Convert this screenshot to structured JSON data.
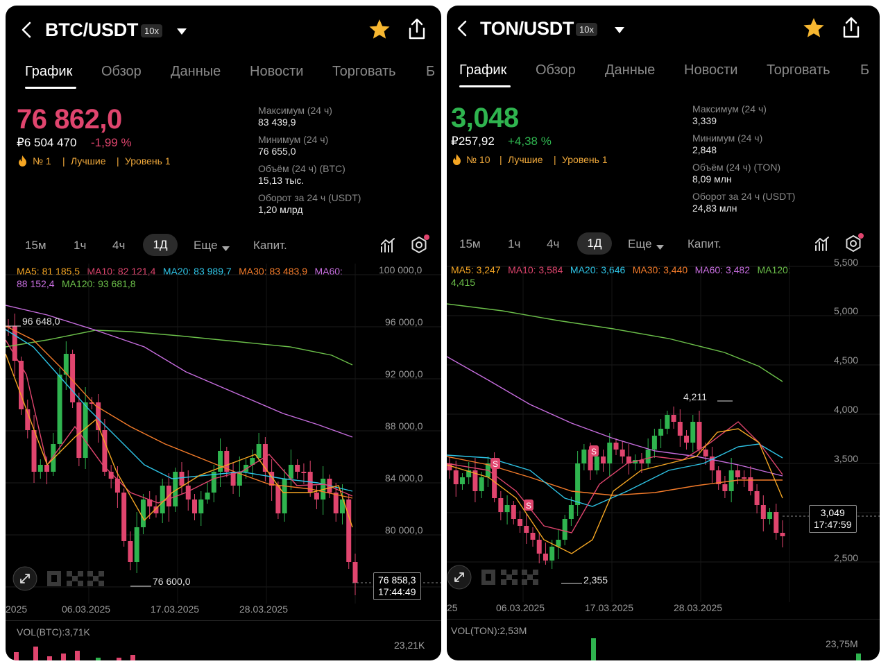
{
  "panels": [
    {
      "pair": "BTC/USDT",
      "leverage": "10x",
      "tabs": [
        "График",
        "Обзор",
        "Данные",
        "Новости",
        "Торговать",
        "Б"
      ],
      "price": "76 862,0",
      "price_color": "#e0456e",
      "fiat_price": "₽6 504 470",
      "change": "-1,99 %",
      "change_color": "#e0456e",
      "rank": "№ 1",
      "best": "Лучшие",
      "level": "Уровень 1",
      "stats": [
        {
          "label": "Максимум (24 ч)",
          "value": "83 439,9"
        },
        {
          "label": "Минимум (24 ч)",
          "value": "76 655,0"
        },
        {
          "label": "Объём (24 ч) (BTC)",
          "value": "15,13 тыс."
        },
        {
          "label": "Оборот за 24 ч (USDT)",
          "value": "1,20 млрд"
        }
      ],
      "timeframes": [
        "15м",
        "1ч",
        "4ч",
        "1Д",
        "Еще",
        "Капит."
      ],
      "ma_line1": [
        {
          "text": "MA5: 81 185,5",
          "color": "#f5a623"
        },
        {
          "text": "MA10: 82 121,4",
          "color": "#e0456e"
        },
        {
          "text": "MA20: 83 989,7",
          "color": "#2ec4e6"
        },
        {
          "text": "MA30: 83 483,9",
          "color": "#f57c2a"
        },
        {
          "text": "MA60:",
          "color": "#c86ee0"
        }
      ],
      "ma_line2": [
        {
          "text": "88 152,4",
          "color": "#c86ee0"
        },
        {
          "text": "MA120: 93 681,8",
          "color": "#6cc04a"
        }
      ],
      "y_axis": [
        "100 000,0",
        "96 000,0",
        "92 000,0",
        "88 000,0",
        "84 000,0",
        "80 000,0"
      ],
      "high_tag": "96 648,0",
      "low_tag": "76 600,0",
      "last_price": "76 858,3",
      "last_time": "17:44:49",
      "dates": [
        "2025",
        "06.03.2025",
        "17.03.2025",
        "28.03.2025"
      ],
      "volume_label": "VOL(BTC):3,71K",
      "volume_max": "23,21K"
    },
    {
      "pair": "TON/USDT",
      "leverage": "10x",
      "tabs": [
        "График",
        "Обзор",
        "Данные",
        "Новости",
        "Торговать",
        "Б"
      ],
      "price": "3,048",
      "price_color": "#2fb44f",
      "fiat_price": "₽257,92",
      "change": "+4,38 %",
      "change_color": "#2fb44f",
      "rank": "№ 10",
      "best": "Лучшие",
      "level": "Уровень 1",
      "stats": [
        {
          "label": "Максимум (24 ч)",
          "value": "3,339"
        },
        {
          "label": "Минимум (24 ч)",
          "value": "2,848"
        },
        {
          "label": "Объём (24 ч) (TON)",
          "value": "8,09 млн"
        },
        {
          "label": "Оборот за 24 ч (USDT)",
          "value": "24,83 млн"
        }
      ],
      "timeframes": [
        "15м",
        "1ч",
        "4ч",
        "1Д",
        "Еще",
        "Капит."
      ],
      "ma_line1": [
        {
          "text": "MA5: 3,247",
          "color": "#f5a623"
        },
        {
          "text": "MA10: 3,584",
          "color": "#e0456e"
        },
        {
          "text": "MA20: 3,646",
          "color": "#2ec4e6"
        },
        {
          "text": "MA30: 3,440",
          "color": "#f57c2a"
        },
        {
          "text": "MA60: 3,482",
          "color": "#c86ee0"
        },
        {
          "text": "MA120:",
          "color": "#6cc04a"
        }
      ],
      "ma_line2": [
        {
          "text": "4,415",
          "color": "#6cc04a"
        }
      ],
      "y_axis": [
        "5,500",
        "5,000",
        "4,500",
        "4,000",
        "3,500",
        "2,500"
      ],
      "high_tag": "4,211",
      "low_tag": "2,355",
      "last_price": "3,049",
      "last_time": "17:47:59",
      "dates": [
        "25",
        "06.03.2025",
        "17.03.2025",
        "28.03.2025"
      ],
      "volume_label": "VOL(TON):2,53M",
      "volume_max": "23,75M"
    }
  ]
}
